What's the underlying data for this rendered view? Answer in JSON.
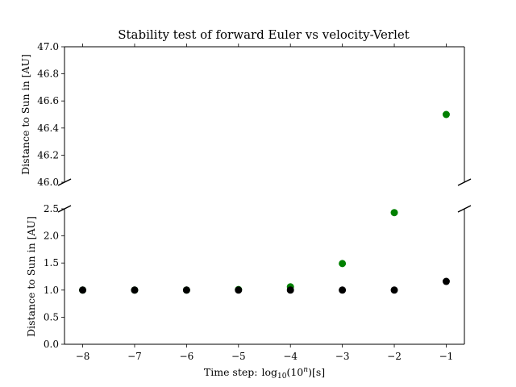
{
  "chart_data": {
    "type": "scatter",
    "title": "Stability test of forward Euler vs velocity-Verlet",
    "xlabel": "Time step:",
    "xlabel_math": "log",
    "xlabel_math_sub": "10",
    "xlabel_math_rest": "(10",
    "xlabel_math_sup": "n",
    "xlabel_math_end": ")[s]",
    "x": [
      -8,
      -7,
      -6,
      -5,
      -4,
      -3,
      -2,
      -1
    ],
    "xticks": [
      "−8",
      "−7",
      "−6",
      "−5",
      "−4",
      "−3",
      "−2",
      "−1"
    ],
    "panels": [
      {
        "ylabel": "Distance to Sun in [AU]",
        "ylim": [
          46.0,
          47.0
        ],
        "yticks": [
          "46.0",
          "46.2",
          "46.4",
          "46.6",
          "46.8",
          "47.0"
        ]
      },
      {
        "ylabel": "Distance to Sun in [AU]",
        "ylim": [
          0.0,
          2.5
        ],
        "yticks": [
          "0.0",
          "0.5",
          "1.0",
          "1.5",
          "2.0",
          "2.5"
        ]
      }
    ],
    "series": [
      {
        "color": "#008000",
        "values": [
          1.0,
          1.0,
          1.0,
          1.01,
          1.06,
          1.49,
          2.43,
          46.5
        ]
      },
      {
        "color": "#000000",
        "values": [
          1.0,
          1.0,
          1.0,
          1.0,
          1.0,
          1.0,
          1.0,
          1.16
        ]
      }
    ],
    "xlim": [
      -8.35,
      -0.65
    ],
    "grid": false
  }
}
